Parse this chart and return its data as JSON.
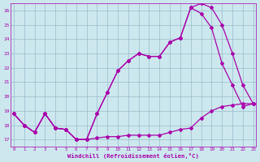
{
  "xlabel": "Windchill (Refroidissement éolien,°C)",
  "bg_color": "#cce8ee",
  "line_color": "#aa00aa",
  "grid_color": "#99bbcc",
  "x_ticks": [
    0,
    1,
    2,
    3,
    4,
    5,
    6,
    7,
    8,
    9,
    10,
    11,
    12,
    13,
    14,
    15,
    16,
    17,
    18,
    19,
    20,
    21,
    22,
    23
  ],
  "ylim": [
    16.5,
    26.5
  ],
  "xlim": [
    -0.3,
    23.3
  ],
  "yticks": [
    17,
    18,
    19,
    20,
    21,
    22,
    23,
    24,
    25,
    26
  ],
  "line1_x": [
    0,
    1,
    2,
    3,
    4,
    5,
    6,
    7,
    8,
    9,
    10,
    11,
    12,
    13,
    14,
    15,
    16,
    17,
    18,
    19,
    20,
    21,
    22,
    23
  ],
  "line1_y": [
    18.8,
    18.0,
    17.5,
    18.8,
    17.8,
    17.7,
    17.0,
    17.0,
    17.1,
    17.2,
    17.2,
    17.3,
    17.3,
    17.3,
    17.3,
    17.5,
    17.7,
    17.8,
    18.5,
    19.0,
    19.3,
    19.4,
    19.5,
    19.5
  ],
  "line2_x": [
    0,
    1,
    2,
    3,
    4,
    5,
    6,
    7,
    8,
    9,
    10,
    11,
    12,
    13,
    14,
    15,
    16,
    17,
    18,
    19,
    20,
    21,
    22,
    23
  ],
  "line2_y": [
    18.8,
    18.0,
    17.5,
    18.8,
    17.8,
    17.7,
    17.0,
    17.0,
    18.8,
    20.3,
    21.8,
    22.5,
    23.0,
    22.8,
    22.8,
    23.8,
    24.1,
    26.2,
    25.8,
    24.8,
    22.3,
    20.8,
    19.3,
    19.5
  ],
  "line3_x": [
    0,
    1,
    2,
    3,
    4,
    5,
    6,
    7,
    8,
    9,
    10,
    11,
    12,
    13,
    14,
    15,
    16,
    17,
    18,
    19,
    20,
    21,
    22,
    23
  ],
  "line3_y": [
    18.8,
    18.0,
    17.5,
    18.8,
    17.8,
    17.7,
    17.0,
    17.0,
    18.8,
    20.3,
    21.8,
    22.5,
    23.0,
    22.8,
    22.8,
    23.8,
    24.1,
    26.2,
    26.5,
    26.2,
    25.0,
    23.0,
    20.8,
    19.5
  ]
}
